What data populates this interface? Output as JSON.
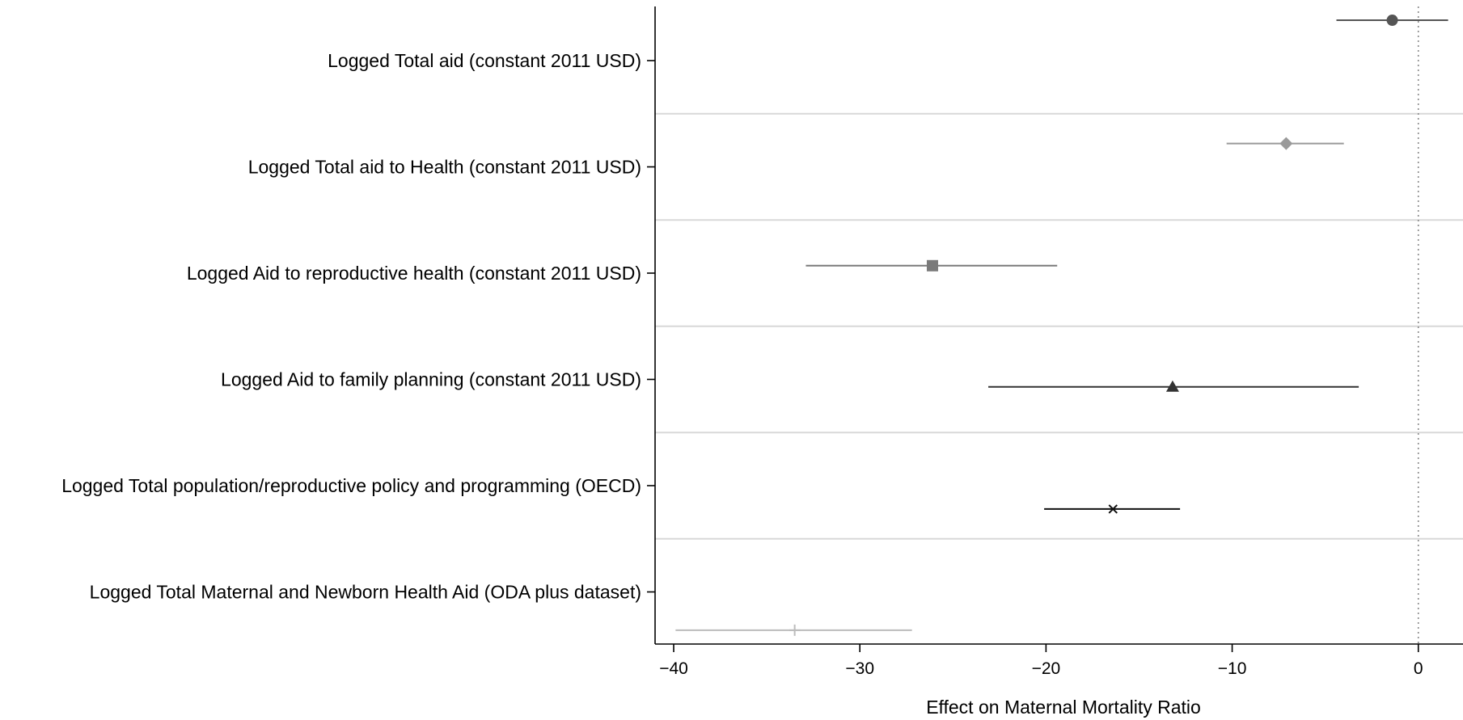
{
  "chart_data": {
    "type": "scatter",
    "subtype": "coefficient-plot",
    "xlabel": "Effect on Maternal Mortality Ratio",
    "xlim": [
      -41,
      2.4
    ],
    "xticks": [
      -40,
      -30,
      -20,
      -10,
      0
    ],
    "xtick_labels": [
      "−40",
      "−30",
      "−20",
      "−10",
      "0"
    ],
    "reference_line": {
      "x": 0,
      "style": "dotted"
    },
    "grid": "horizontal separators between categories",
    "categories": [
      "Logged Total aid (constant 2011 USD)",
      "Logged Total aid to Health (constant 2011 USD)",
      "Logged Aid to reproductive health (constant 2011 USD)",
      "Logged Aid to family planning (constant 2011 USD)",
      "Logged Total population/reproductive policy and programming (OECD)",
      "Logged Total Maternal and Newborn Health Aid (ODA plus dataset)"
    ],
    "series": [
      {
        "category_index": 0,
        "estimate": -1.4,
        "ci": [
          -4.4,
          1.6
        ],
        "marker": "circle",
        "color": "#555555",
        "offset": 0.38
      },
      {
        "category_index": 1,
        "estimate": -7.1,
        "ci": [
          -10.3,
          -4.0
        ],
        "marker": "diamond",
        "color": "#9a9a9a",
        "offset": 0.22
      },
      {
        "category_index": 2,
        "estimate": -26.1,
        "ci": [
          -32.9,
          -19.4
        ],
        "marker": "square",
        "color": "#7a7a7a",
        "offset": 0.07
      },
      {
        "category_index": 3,
        "estimate": -13.2,
        "ci": [
          -23.1,
          -3.2
        ],
        "marker": "triangle",
        "color": "#333333",
        "offset": -0.07
      },
      {
        "category_index": 4,
        "estimate": -16.4,
        "ci": [
          -20.1,
          -12.8
        ],
        "marker": "x",
        "color": "#111111",
        "offset": -0.22
      },
      {
        "category_index": 5,
        "estimate": -33.5,
        "ci": [
          -39.9,
          -27.2
        ],
        "marker": "plus",
        "color": "#bcbcbc",
        "offset": -0.36
      }
    ]
  }
}
